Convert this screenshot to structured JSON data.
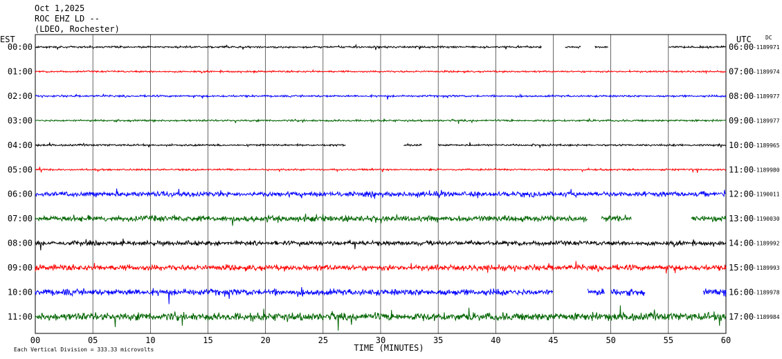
{
  "header": {
    "date": "Oct 1,2025",
    "station": "ROC EHZ LD --",
    "network": "(LDEO, Rochester)"
  },
  "chart_data": {
    "type": "line",
    "title": "",
    "left_axis_label": "EST",
    "right_axis_label": "UTC",
    "dc_label": "DC",
    "xlabel": "TIME (MINUTES)",
    "xlim": [
      0,
      60
    ],
    "x_ticks": [
      "00",
      "05",
      "10",
      "15",
      "20",
      "25",
      "30",
      "35",
      "40",
      "45",
      "50",
      "55",
      "60"
    ],
    "grid": true,
    "footnote": "Each Vertical Division = 333.33 microvolts",
    "trace_colors": [
      "#000000",
      "#ff0000",
      "#0000ff",
      "#006400"
    ],
    "traces": [
      {
        "est": "00:00",
        "utc": "06:00",
        "dc": "-1189971",
        "amplitude": 1.0,
        "gaps": [
          [
            44,
            46
          ],
          [
            47.4,
            48.6
          ],
          [
            49.8,
            55
          ]
        ]
      },
      {
        "est": "01:00",
        "utc": "07:00",
        "dc": "-1189974",
        "amplitude": 0.9,
        "gaps": []
      },
      {
        "est": "02:00",
        "utc": "08:00",
        "dc": "-1189977",
        "amplitude": 1.0,
        "gaps": []
      },
      {
        "est": "03:00",
        "utc": "09:00",
        "dc": "-1189977",
        "amplitude": 1.0,
        "gaps": []
      },
      {
        "est": "04:00",
        "utc": "10:00",
        "dc": "-1189965",
        "amplitude": 1.0,
        "gaps": [
          [
            27,
            32
          ],
          [
            33.6,
            35
          ]
        ]
      },
      {
        "est": "05:00",
        "utc": "11:00",
        "dc": "-1189980",
        "amplitude": 0.9,
        "gaps": []
      },
      {
        "est": "06:00",
        "utc": "12:00",
        "dc": "-1190011",
        "amplitude": 2.6,
        "gaps": []
      },
      {
        "est": "07:00",
        "utc": "13:00",
        "dc": "-1190030",
        "amplitude": 3.2,
        "gaps": [
          [
            48,
            49.2
          ],
          [
            51.8,
            57
          ]
        ]
      },
      {
        "est": "08:00",
        "utc": "14:00",
        "dc": "-1189992",
        "amplitude": 2.4,
        "gaps": []
      },
      {
        "est": "09:00",
        "utc": "15:00",
        "dc": "-1189993",
        "amplitude": 3.0,
        "gaps": []
      },
      {
        "est": "10:00",
        "utc": "16:00",
        "dc": "-1189978",
        "amplitude": 3.4,
        "gaps": [
          [
            45,
            48
          ],
          [
            49.5,
            50
          ],
          [
            53,
            58
          ]
        ]
      },
      {
        "est": "11:00",
        "utc": "17:00",
        "dc": "-1189984",
        "amplitude": 4.2,
        "gaps": []
      }
    ]
  }
}
